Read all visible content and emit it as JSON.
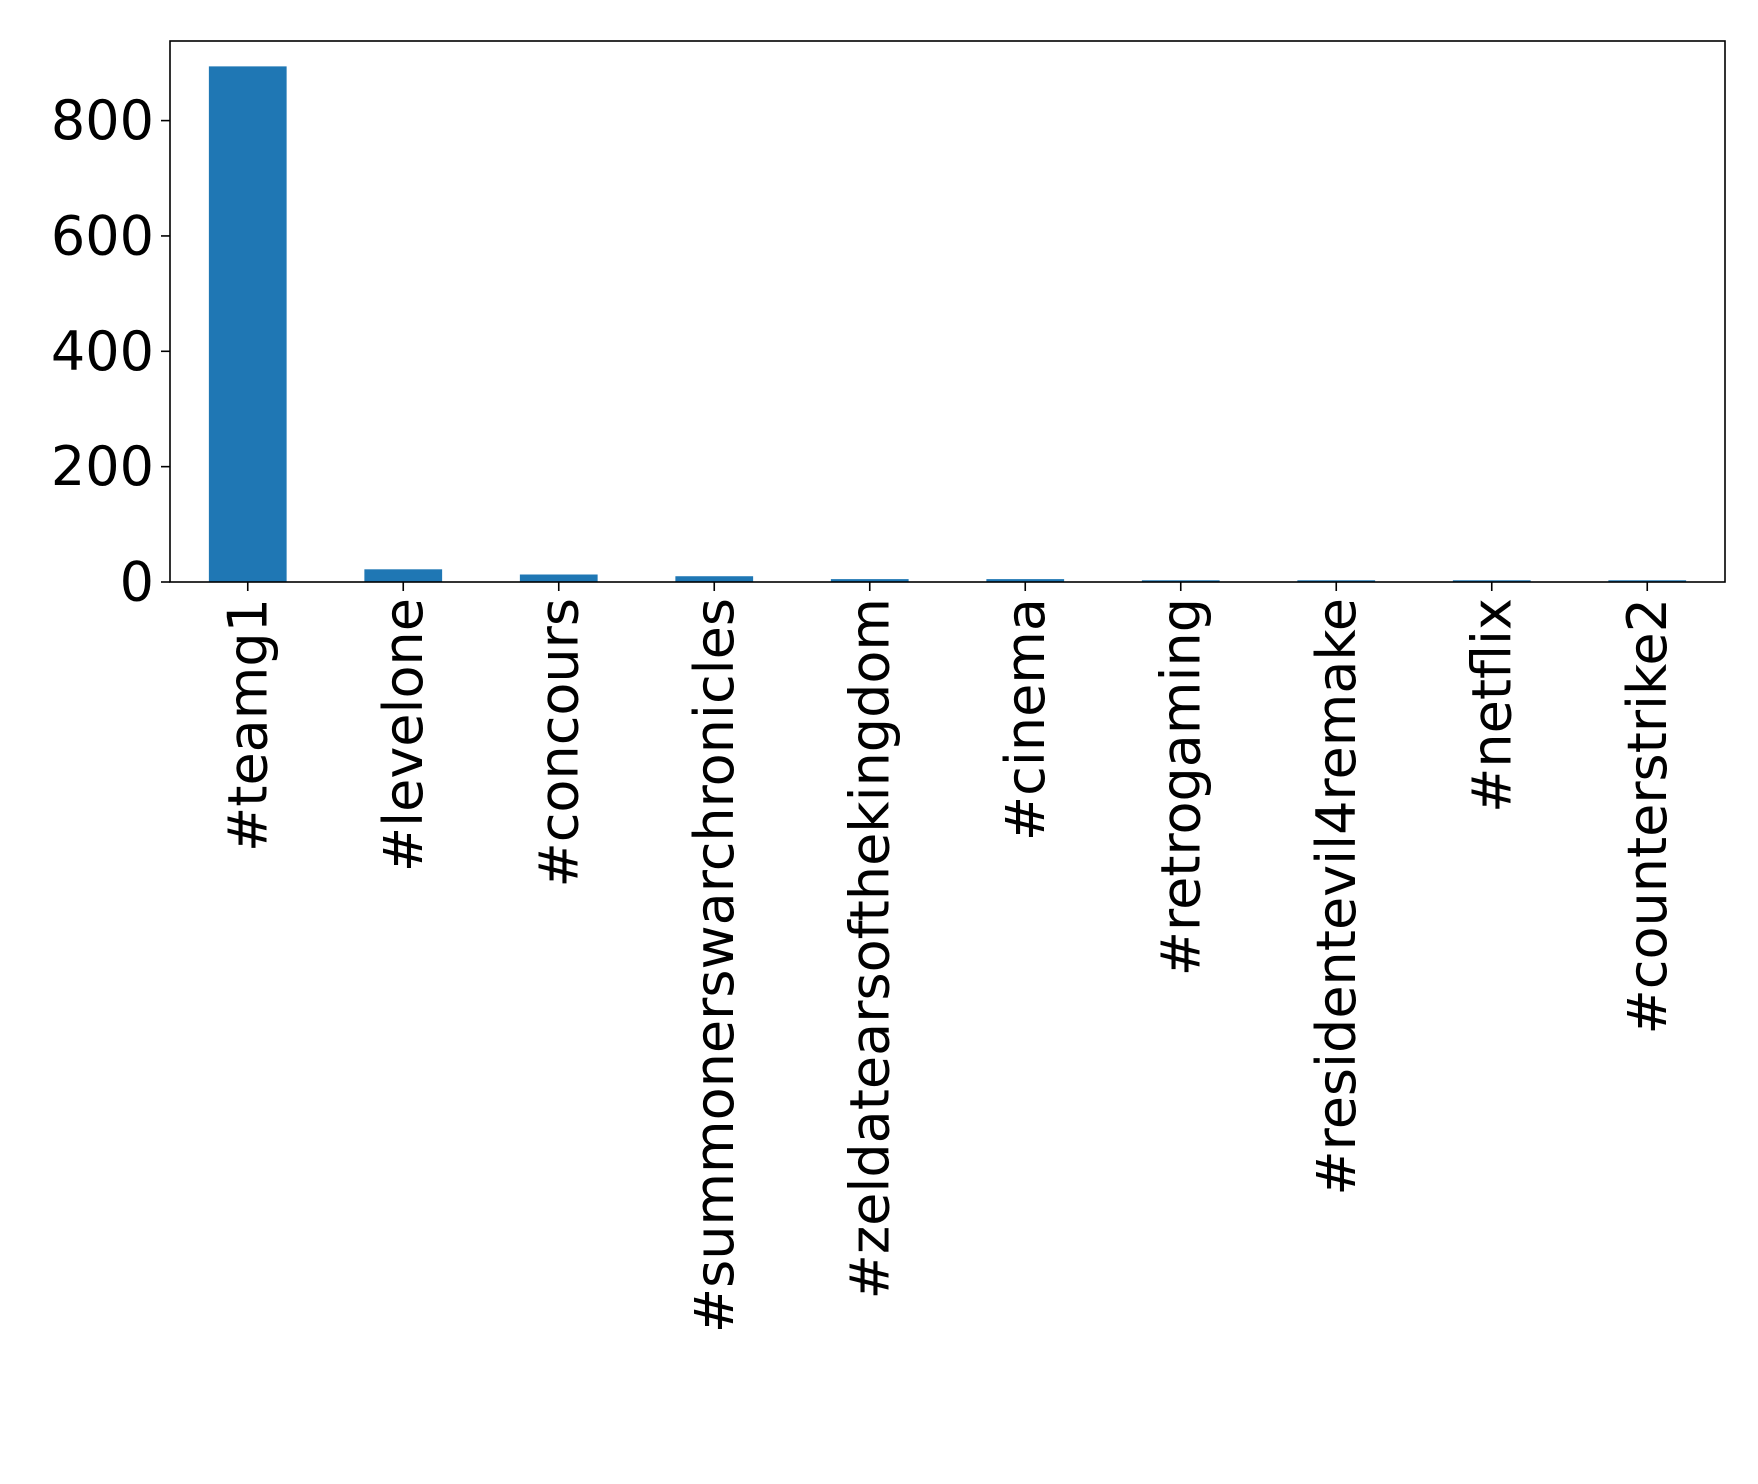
{
  "chart_data": {
    "type": "bar",
    "title": "",
    "xlabel": "",
    "ylabel": "",
    "categories": [
      "#teamg1",
      "#levelone",
      "#concours",
      "#summonerswarchronicles",
      "#zeldatearsofthekingdom",
      "#cinema",
      "#retrogaming",
      "#residentevil4remake",
      "#netflix",
      "#counterstrike2"
    ],
    "values": [
      894,
      22,
      13,
      10,
      5,
      5,
      3,
      3,
      3,
      3
    ],
    "ylim": [
      0,
      938
    ],
    "yticks": [
      0,
      200,
      400,
      600,
      800
    ],
    "ytick_labels": [
      "0",
      "200",
      "400",
      "600",
      "800"
    ],
    "bar_color": "#1f77b4",
    "grid": false,
    "legend": "none"
  }
}
